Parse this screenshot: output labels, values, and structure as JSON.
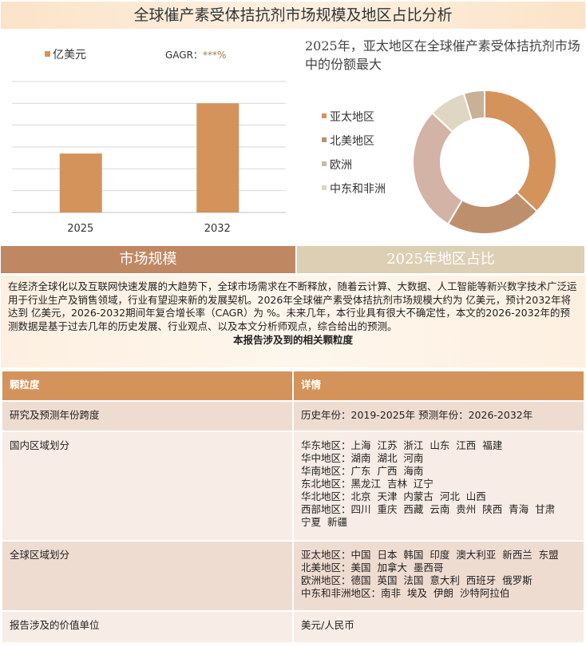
{
  "title": "全球催产素受体拮抗剂市场规模及地区占比分析",
  "chart_data": [
    {
      "type": "bar",
      "legend": "亿美元",
      "gagr_label": "GAGR：",
      "gagr_value": "***%",
      "categories": [
        "2025",
        "2032"
      ],
      "values": [
        2.7,
        5.0
      ],
      "ylim": [
        0,
        6
      ],
      "grid": true,
      "color": "#d4935a"
    },
    {
      "type": "pie",
      "donut": true,
      "title": "2025年，亚太地区在全球催产素受体拮抗剂市场中的份额最大",
      "labels": [
        "亚太地区",
        "北美地区",
        "欧洲",
        "中东和非洲",
        ""
      ],
      "values": [
        37,
        21.5,
        28.5,
        8.3,
        4.7
      ],
      "colors": [
        "#d4935a",
        "#be8f6c",
        "#d3b3a6",
        "#e0d6c4",
        "#c9b196"
      ]
    }
  ],
  "sections": {
    "left": "市场规模",
    "right": "2025年地区占比"
  },
  "intro": {
    "text": "在经济全球化以及互联网快速发展的大趋势下，全球市场需求在不断释放，随着云计算、大数据、人工智能等新兴数字技术广泛运用于行业生产及销售领域，行业有望迎来新的发展契机。2026年全球催产素受体拮抗剂市场规模大约为 亿美元，预计2032年将达到 亿美元，2026-2032期间年复合增长率（CAGR）为 %。未来几年，本行业具有很大不确定性，本文的2026-2032年的预测数据是基于过去几年的历史发展、行业观点、以及本文分析师观点，综合给出的预测。",
    "heading": "本报告涉及到的相关颗粒度"
  },
  "table": {
    "headers": [
      "颗粒度",
      "详情"
    ],
    "rows": [
      {
        "label": "研究及预测年份跨度",
        "lines": [
          "历史年份：2019-2025年 预测年份：2026-2032年"
        ]
      },
      {
        "label": "国内区域划分",
        "lines": [
          "华东地区：上海  江苏  浙江  山东  江西  福建",
          "华中地区：湖南  湖北  河南",
          "华南地区：广东  广西  海南",
          "东北地区：黑龙江  吉林  辽宁",
          "华北地区：北京  天津  内蒙古  河北  山西",
          "西部地区：四川  重庆  西藏  云南  贵州  陕西  青海  甘肃",
          "宁夏  新疆"
        ]
      },
      {
        "label": "全球区域划分",
        "lines": [
          "亚太地区：中国  日本  韩国  印度  澳大利亚  新西兰  东盟",
          "北美地区：美国  加拿大  墨西哥",
          "欧洲地区：德国  英国  法国  意大利  西班牙  俄罗斯",
          "中东和非洲地区：南非  埃及  伊朗  沙特阿拉伯"
        ]
      },
      {
        "label": "报告涉及的价值单位",
        "lines": [
          "美元/人民币"
        ]
      }
    ]
  }
}
